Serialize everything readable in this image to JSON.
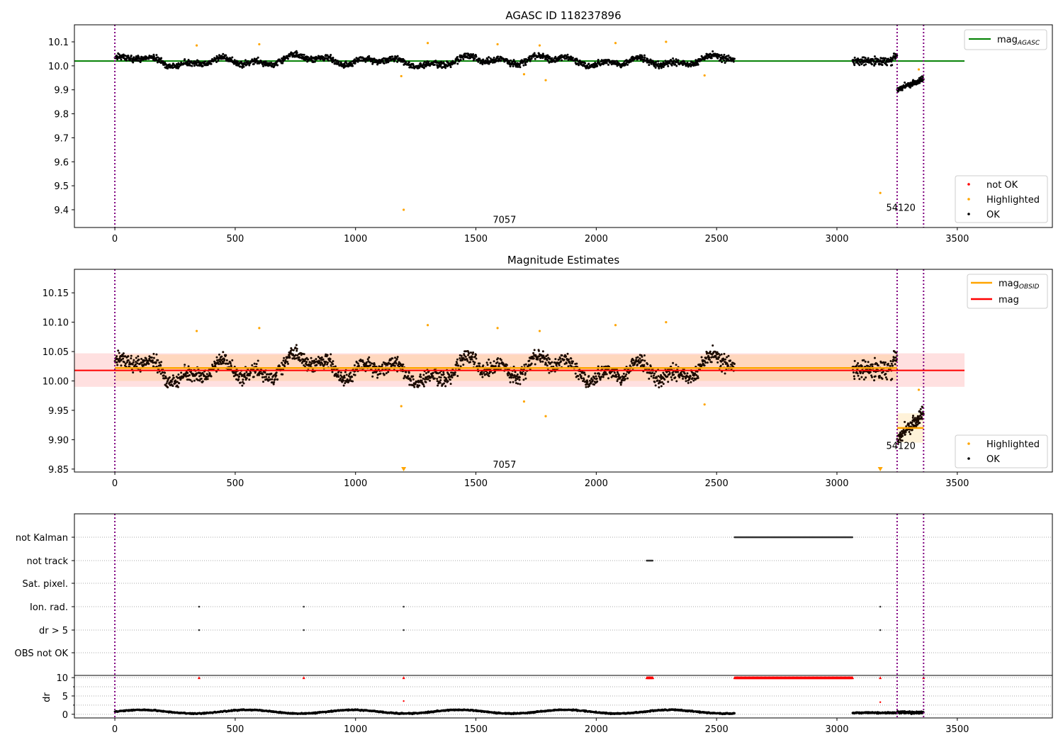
{
  "chart_data": [
    {
      "type": "scatter",
      "title": "AGASC ID 118237896",
      "xlabel": "",
      "ylabel": "",
      "xlim": [
        -168,
        3895
      ],
      "ylim": [
        9.326,
        10.171
      ],
      "xticks": [
        "0",
        "500",
        "1000",
        "1500",
        "2000",
        "2500",
        "3000",
        "3500"
      ],
      "yticks": [
        "10.1",
        "10.0",
        "9.9",
        "9.8",
        "9.7",
        "9.6",
        "9.5",
        "9.4"
      ],
      "reference_lines": [
        {
          "name": "mag_AGASC",
          "label": "mag",
          "sub": "AGASC",
          "value": 10.02,
          "x_range": [
            -168,
            3530
          ],
          "color": "#008000"
        }
      ],
      "vlines": [
        0,
        3250,
        3360
      ],
      "annotations": [
        {
          "text": "7057",
          "x": 1570,
          "y": 9.36
        },
        {
          "text": "54120",
          "x": 3240,
          "y": 9.41
        }
      ],
      "segments": [
        {
          "x_range": [
            0,
            2575
          ],
          "mean": 10.02,
          "scatter": 0.03
        },
        {
          "x_range": [
            3065,
            3250
          ],
          "mean": 10.02,
          "scatter": 0.025
        },
        {
          "x_range": [
            3250,
            3360
          ],
          "mean_start": 9.9,
          "mean_end": 9.95,
          "scatter": 0.02
        }
      ],
      "highlighted": [
        [
          1200,
          9.4
        ],
        [
          3180,
          9.47
        ],
        [
          1790,
          9.94
        ],
        [
          1700,
          9.965
        ],
        [
          2450,
          9.96
        ],
        [
          1190,
          9.957
        ],
        [
          3340,
          9.985
        ],
        [
          340,
          10.085
        ],
        [
          600,
          10.09
        ],
        [
          1300,
          10.095
        ],
        [
          1590,
          10.09
        ],
        [
          2080,
          10.095
        ],
        [
          2290,
          10.1
        ],
        [
          1765,
          10.085
        ]
      ],
      "legend": [
        {
          "label": "not OK",
          "color": "#ff0000"
        },
        {
          "label": "Highlighted",
          "color": "#ffa500"
        },
        {
          "label": "OK",
          "color": "#000000"
        }
      ],
      "legend_placement": "lower-right",
      "line_legend_placement": "upper-right"
    },
    {
      "type": "scatter",
      "title": "Magnitude Estimates",
      "xlim": [
        -168,
        3895
      ],
      "ylim": [
        9.845,
        10.19
      ],
      "xticks": [
        "0",
        "500",
        "1000",
        "1500",
        "2000",
        "2500",
        "3000",
        "3500"
      ],
      "yticks": [
        "10.15",
        "10.10",
        "10.05",
        "10.00",
        "9.95",
        "9.90",
        "9.85"
      ],
      "reference_lines": [
        {
          "name": "mag_OBSID",
          "label": "mag",
          "sub": "OBSID",
          "color": "#ffa500",
          "pieces": [
            {
              "x_range": [
                0,
                3250
              ],
              "value": 10.022,
              "band": [
                10.0,
                10.045
              ]
            },
            {
              "x_range": [
                3250,
                3360
              ],
              "value": 9.92,
              "band": [
                9.895,
                9.945
              ]
            }
          ]
        },
        {
          "name": "mag",
          "label": "mag",
          "color": "#ff0000",
          "value": 10.018,
          "x_range": [
            -168,
            3530
          ],
          "band": [
            9.99,
            10.047
          ]
        }
      ],
      "vlines": [
        0,
        3250,
        3360
      ],
      "annotations": [
        {
          "text": "7057",
          "x": 1570,
          "y": 9.858
        },
        {
          "text": "54120",
          "x": 3240,
          "y": 9.89
        }
      ],
      "offscale_markers": [
        1200,
        3180
      ],
      "legend": [
        {
          "label": "Highlighted",
          "color": "#ffa500"
        },
        {
          "label": "OK",
          "color": "#000000"
        }
      ]
    },
    {
      "type": "scatter",
      "title": "",
      "categories": [
        "not Kalman",
        "not track",
        "Sat. pixel.",
        "Ion. rad.",
        "dr > 5",
        "OBS not OK"
      ],
      "flags": {
        "not Kalman": [
          [
            2575,
            3065
          ]
        ],
        "not track": [
          [
            2210,
            2235
          ]
        ],
        "Sat. pixel.": [],
        "Ion. rad.": [
          [
            350,
            350
          ],
          [
            785,
            785
          ],
          [
            1200,
            1200
          ],
          [
            3180,
            3180
          ]
        ],
        "dr > 5": [
          [
            350,
            350
          ],
          [
            785,
            785
          ],
          [
            1200,
            1200
          ],
          [
            3180,
            3180
          ]
        ],
        "OBS not OK": []
      },
      "dr_panel": {
        "ylabel": "dr",
        "ylim": [
          -1,
          10.6
        ],
        "yticks": [
          "10",
          "5",
          "0"
        ],
        "clipped_at_10": [
          [
            350,
            350
          ],
          [
            785,
            785
          ],
          [
            1200,
            1200
          ],
          [
            2210,
            2235
          ],
          [
            2575,
            3065
          ],
          [
            3180,
            3180
          ],
          [
            3360,
            3360
          ]
        ],
        "outliers": [
          [
            1200,
            3.6
          ],
          [
            3180,
            3.3
          ]
        ]
      },
      "xticks": [
        "0",
        "500",
        "1000",
        "1500",
        "2000",
        "2500",
        "3000",
        "3500"
      ]
    }
  ]
}
